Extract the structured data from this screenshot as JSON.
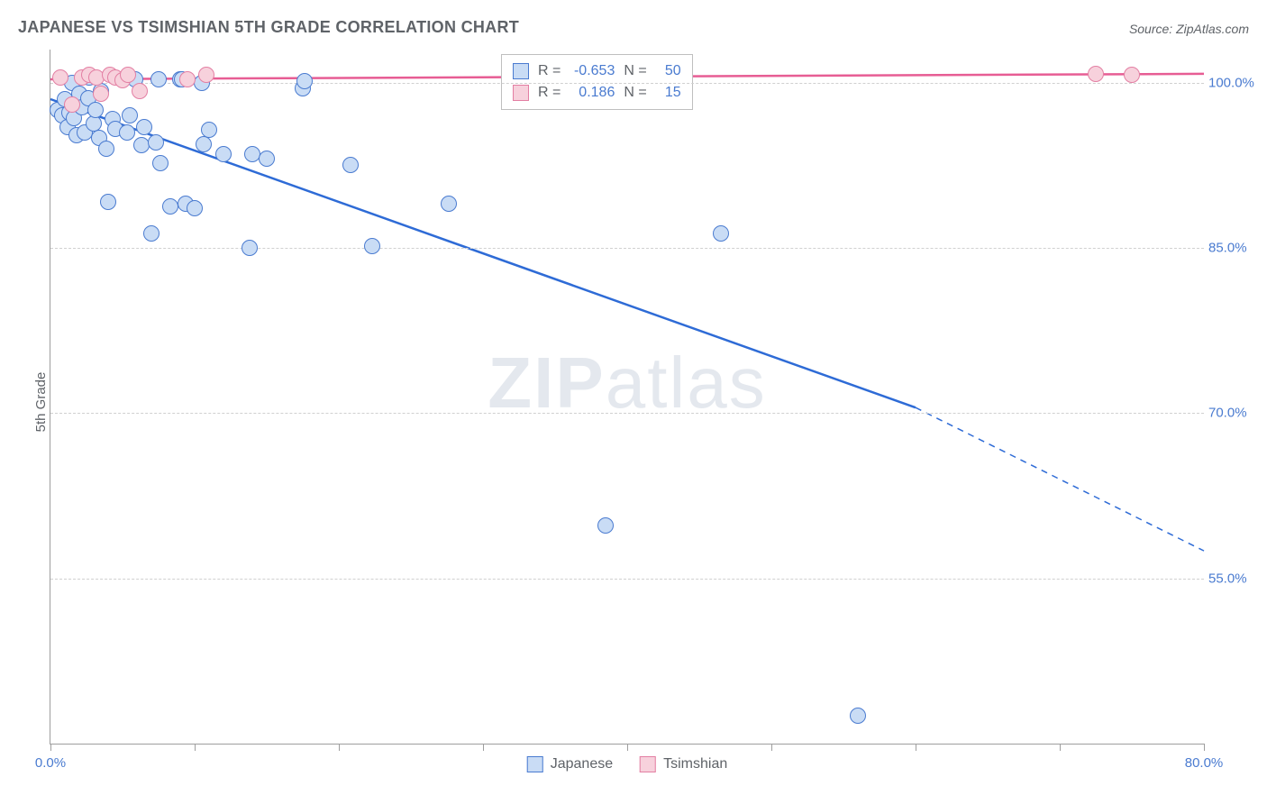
{
  "title": "JAPANESE VS TSIMSHIAN 5TH GRADE CORRELATION CHART",
  "source": "Source: ZipAtlas.com",
  "ylabel": "5th Grade",
  "watermark_zip": "ZIP",
  "watermark_atlas": "atlas",
  "chart": {
    "type": "scatter",
    "xlim": [
      0,
      80
    ],
    "ylim": [
      40,
      103
    ],
    "xtick_positions": [
      0,
      10,
      20,
      30,
      40,
      50,
      60,
      70,
      80
    ],
    "xtick_labels": {
      "0": "0.0%",
      "80": "80.0%"
    },
    "ytick_positions": [
      55,
      70,
      85,
      100
    ],
    "ytick_labels": {
      "55": "55.0%",
      "70": "70.0%",
      "85": "85.0%",
      "100": "100.0%"
    },
    "grid_color": "#d0d0d0",
    "axis_color": "#9e9e9e",
    "tick_label_color": "#4a7bd0",
    "background_color": "#ffffff",
    "point_radius": 9,
    "point_border_width": 1.5,
    "series": [
      {
        "name": "Japanese",
        "fill_color": "#c9dcf5",
        "stroke_color": "#4a7bd0",
        "line_color": "#2e6bd6",
        "line_width": 2.5,
        "trend": {
          "x1": 0,
          "y1": 98.5,
          "x2": 60,
          "y2": 70.5,
          "dash_x2": 80,
          "dash_y2": 57.5
        },
        "R": "-0.653",
        "N": "50",
        "points": [
          [
            0.5,
            97.5
          ],
          [
            0.8,
            97.0
          ],
          [
            1.0,
            98.5
          ],
          [
            1.2,
            96.0
          ],
          [
            1.3,
            97.3
          ],
          [
            1.5,
            100.0
          ],
          [
            1.6,
            96.8
          ],
          [
            1.8,
            95.2
          ],
          [
            2.0,
            99.0
          ],
          [
            2.2,
            97.8
          ],
          [
            2.4,
            95.5
          ],
          [
            2.6,
            98.6
          ],
          [
            2.7,
            100.5
          ],
          [
            3.0,
            96.3
          ],
          [
            3.1,
            97.5
          ],
          [
            3.4,
            95.0
          ],
          [
            3.5,
            99.2
          ],
          [
            3.9,
            94.0
          ],
          [
            4.0,
            89.2
          ],
          [
            4.3,
            96.7
          ],
          [
            4.5,
            95.8
          ],
          [
            5.3,
            95.5
          ],
          [
            5.5,
            97.0
          ],
          [
            5.9,
            100.3
          ],
          [
            6.3,
            94.3
          ],
          [
            6.5,
            96.0
          ],
          [
            7.0,
            86.3
          ],
          [
            7.3,
            94.6
          ],
          [
            7.5,
            100.3
          ],
          [
            7.6,
            92.7
          ],
          [
            8.3,
            88.8
          ],
          [
            9.0,
            100.3
          ],
          [
            9.1,
            100.3
          ],
          [
            9.4,
            89.0
          ],
          [
            10.0,
            88.6
          ],
          [
            10.5,
            100.0
          ],
          [
            10.6,
            94.4
          ],
          [
            11.0,
            95.7
          ],
          [
            12.0,
            93.5
          ],
          [
            13.8,
            85.0
          ],
          [
            14.0,
            93.5
          ],
          [
            15.0,
            93.1
          ],
          [
            17.5,
            99.5
          ],
          [
            17.6,
            100.1
          ],
          [
            20.8,
            92.5
          ],
          [
            22.3,
            85.2
          ],
          [
            27.6,
            89.0
          ],
          [
            38.5,
            59.8
          ],
          [
            46.5,
            86.3
          ],
          [
            56.0,
            42.5
          ]
        ]
      },
      {
        "name": "Tsimshian",
        "fill_color": "#f7d1dc",
        "stroke_color": "#e37fa3",
        "line_color": "#e75d94",
        "line_width": 2.5,
        "trend": {
          "x1": 0,
          "y1": 100.3,
          "x2": 80,
          "y2": 100.8
        },
        "R": "0.186",
        "N": "15",
        "points": [
          [
            0.7,
            100.5
          ],
          [
            1.5,
            98.0
          ],
          [
            2.2,
            100.5
          ],
          [
            2.7,
            100.7
          ],
          [
            3.2,
            100.5
          ],
          [
            3.5,
            99.0
          ],
          [
            4.1,
            100.7
          ],
          [
            4.5,
            100.5
          ],
          [
            5.0,
            100.2
          ],
          [
            5.4,
            100.7
          ],
          [
            6.2,
            99.2
          ],
          [
            9.5,
            100.3
          ],
          [
            10.8,
            100.7
          ],
          [
            72.5,
            100.8
          ],
          [
            75.0,
            100.7
          ]
        ]
      }
    ]
  },
  "legend_stats": {
    "rows": [
      {
        "swatch_fill": "#c9dcf5",
        "swatch_stroke": "#4a7bd0",
        "R_label": "R =",
        "R": "-0.653",
        "N_label": "N =",
        "N": "50"
      },
      {
        "swatch_fill": "#f7d1dc",
        "swatch_stroke": "#e37fa3",
        "R_label": "R =",
        "R": "0.186",
        "N_label": "N =",
        "N": "15"
      }
    ]
  },
  "bottom_legend": [
    {
      "swatch_fill": "#c9dcf5",
      "swatch_stroke": "#4a7bd0",
      "label": "Japanese"
    },
    {
      "swatch_fill": "#f7d1dc",
      "swatch_stroke": "#e37fa3",
      "label": "Tsimshian"
    }
  ]
}
